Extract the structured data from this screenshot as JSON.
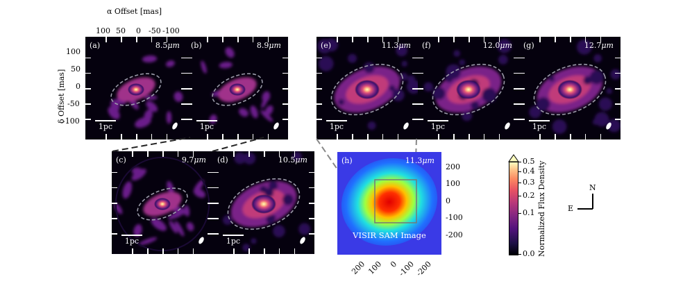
{
  "figure": {
    "x_top_title": "α Offset [mas]",
    "x_top_ticks": [
      "100",
      "50",
      "0",
      "-50",
      "-100"
    ],
    "y_title": "δ Offset [mas]",
    "y_ticks": [
      "100",
      "50",
      "0",
      "-50",
      "-100"
    ],
    "scale_bar_label": "1pc",
    "panels": [
      {
        "id": "a",
        "label": "(a)",
        "wavelength": "8.5",
        "unit": "μm",
        "style": "clumpy"
      },
      {
        "id": "b",
        "label": "(b)",
        "wavelength": "8.9",
        "unit": "μm",
        "style": "clumpy"
      },
      {
        "id": "c",
        "label": "(c)",
        "wavelength": "9.7",
        "unit": "μm",
        "style": "clumpy-disk"
      },
      {
        "id": "d",
        "label": "(d)",
        "wavelength": "10.5",
        "unit": "μm",
        "style": "smooth"
      },
      {
        "id": "e",
        "label": "(e)",
        "wavelength": "11.3",
        "unit": "μm",
        "style": "smooth"
      },
      {
        "id": "f",
        "label": "(f)",
        "wavelength": "12.0",
        "unit": "μm",
        "style": "smooth"
      },
      {
        "id": "g",
        "label": "(g)",
        "wavelength": "12.7",
        "unit": "μm",
        "style": "smooth"
      }
    ],
    "panel_h": {
      "label": "(h)",
      "wavelength": "11.3",
      "unit": "μm",
      "caption": "VISIR SAM Image",
      "x_ticks": [
        "200",
        "100",
        "0",
        "-100",
        "-200"
      ],
      "y_ticks": [
        "200",
        "100",
        "0",
        "-100",
        "-200"
      ]
    },
    "colorbar": {
      "label": "Normalized Flux Density",
      "ticks": [
        "0.0",
        "0.1",
        "0.2",
        "0.3",
        "0.4",
        "0.5"
      ],
      "tick_values": [
        0.0,
        0.1,
        0.2,
        0.3,
        0.4,
        0.5
      ],
      "colormap": "magma",
      "extend": "max"
    },
    "compass": {
      "north": "N",
      "east": "E"
    },
    "colors": {
      "contour": "#9a9aa8",
      "zoom_line": "#222222",
      "zoom_grey": "#888888"
    }
  }
}
